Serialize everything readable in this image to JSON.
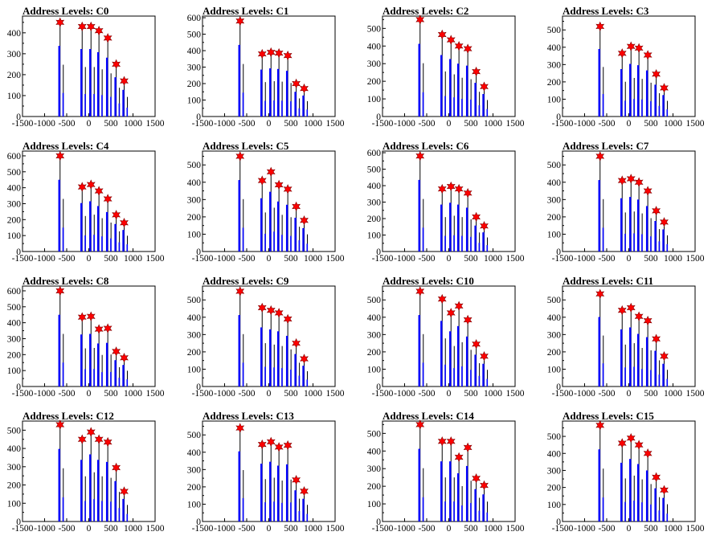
{
  "figure": {
    "colors": {
      "bar": "#0000ff",
      "marker": "#ff0000",
      "axis": "#000000"
    }
  },
  "chart_data": [
    {
      "type": "bar",
      "title": "Address Levels: C0",
      "xlim": [
        -1500,
        1500
      ],
      "ylim": [
        0,
        480
      ],
      "xticks": [
        "-1500",
        "-1000",
        "-500",
        "0",
        "500",
        "1000",
        "1500"
      ],
      "yticks": [
        "100",
        "200",
        "300",
        "400"
      ],
      "peaks": [
        [
          -650,
          450
        ],
        [
          -150,
          430
        ],
        [
          50,
          430
        ],
        [
          230,
          410
        ],
        [
          430,
          375
        ],
        [
          620,
          250
        ],
        [
          800,
          170
        ]
      ]
    },
    {
      "type": "bar",
      "title": "Address Levels: C1",
      "xlim": [
        -1500,
        1500
      ],
      "ylim": [
        0,
        610
      ],
      "xticks": [
        "-1500",
        "-1000",
        "-500",
        "0",
        "500",
        "1000",
        "1500"
      ],
      "yticks": [
        "100",
        "200",
        "300",
        "400",
        "500",
        "600"
      ],
      "peaks": [
        [
          -650,
          580
        ],
        [
          -150,
          380
        ],
        [
          50,
          390
        ],
        [
          230,
          385
        ],
        [
          430,
          370
        ],
        [
          620,
          200
        ],
        [
          800,
          170
        ]
      ]
    },
    {
      "type": "bar",
      "title": "Address Levels: C2",
      "xlim": [
        -1500,
        1500
      ],
      "ylim": [
        0,
        570
      ],
      "xticks": [
        "-1500",
        "-1000",
        "-500",
        "0",
        "500",
        "1000",
        "1500"
      ],
      "yticks": [
        "100",
        "200",
        "300",
        "400",
        "500"
      ],
      "peaks": [
        [
          -650,
          550
        ],
        [
          -150,
          465
        ],
        [
          50,
          435
        ],
        [
          230,
          400
        ],
        [
          430,
          385
        ],
        [
          620,
          255
        ],
        [
          800,
          170
        ]
      ]
    },
    {
      "type": "bar",
      "title": "Address Levels: C3",
      "xlim": [
        -1500,
        1500
      ],
      "ylim": [
        0,
        580
      ],
      "xticks": [
        "-1500",
        "-1000",
        "-500",
        "0",
        "500",
        "1000",
        "1500"
      ],
      "yticks": [
        "100",
        "200",
        "300",
        "400",
        "500"
      ],
      "peaks": [
        [
          -650,
          520
        ],
        [
          -150,
          365
        ],
        [
          50,
          405
        ],
        [
          230,
          395
        ],
        [
          430,
          355
        ],
        [
          620,
          245
        ],
        [
          800,
          165
        ]
      ]
    },
    {
      "type": "bar",
      "title": "Address Levels: C4",
      "xlim": [
        -1500,
        1500
      ],
      "ylim": [
        0,
        630
      ],
      "xticks": [
        "-1500",
        "-1000",
        "-500",
        "0",
        "500",
        "1000",
        "1500"
      ],
      "yticks": [
        "100",
        "200",
        "300",
        "400",
        "500",
        "600"
      ],
      "peaks": [
        [
          -650,
          600
        ],
        [
          -150,
          405
        ],
        [
          50,
          420
        ],
        [
          230,
          380
        ],
        [
          430,
          330
        ],
        [
          620,
          230
        ],
        [
          800,
          180
        ]
      ]
    },
    {
      "type": "bar",
      "title": "Address Levels: C5",
      "xlim": [
        -1500,
        1500
      ],
      "ylim": [
        0,
        580
      ],
      "xticks": [
        "-1500",
        "-1000",
        "-500",
        "0",
        "500",
        "1000",
        "1500"
      ],
      "yticks": [
        "100",
        "200",
        "300",
        "400",
        "500"
      ],
      "peaks": [
        [
          -650,
          550
        ],
        [
          -150,
          410
        ],
        [
          50,
          460
        ],
        [
          230,
          385
        ],
        [
          430,
          360
        ],
        [
          620,
          260
        ],
        [
          800,
          180
        ]
      ]
    },
    {
      "type": "bar",
      "title": "Address Levels: C6",
      "xlim": [
        -1500,
        1500
      ],
      "ylim": [
        0,
        610
      ],
      "xticks": [
        "-1500",
        "-1000",
        "-500",
        "0",
        "500",
        "1000",
        "1500"
      ],
      "yticks": [
        "100",
        "200",
        "300",
        "400",
        "500",
        "600"
      ],
      "peaks": [
        [
          -650,
          580
        ],
        [
          -150,
          380
        ],
        [
          50,
          395
        ],
        [
          230,
          380
        ],
        [
          430,
          355
        ],
        [
          620,
          210
        ],
        [
          800,
          155
        ]
      ]
    },
    {
      "type": "bar",
      "title": "Address Levels: C7",
      "xlim": [
        -1500,
        1500
      ],
      "ylim": [
        0,
        580
      ],
      "xticks": [
        "-1500",
        "-1000",
        "-500",
        "0",
        "500",
        "1000",
        "1500"
      ],
      "yticks": [
        "100",
        "200",
        "300",
        "400",
        "500"
      ],
      "peaks": [
        [
          -650,
          550
        ],
        [
          -150,
          410
        ],
        [
          50,
          420
        ],
        [
          230,
          400
        ],
        [
          430,
          350
        ],
        [
          620,
          235
        ],
        [
          800,
          170
        ]
      ]
    },
    {
      "type": "bar",
      "title": "Address Levels: C8",
      "xlim": [
        -1500,
        1500
      ],
      "ylim": [
        0,
        630
      ],
      "xticks": [
        "-1500",
        "-1000",
        "-500",
        "0",
        "500",
        "1000",
        "1500"
      ],
      "yticks": [
        "100",
        "200",
        "300",
        "400",
        "500",
        "600"
      ],
      "peaks": [
        [
          -650,
          600
        ],
        [
          -150,
          435
        ],
        [
          50,
          440
        ],
        [
          230,
          360
        ],
        [
          430,
          365
        ],
        [
          620,
          220
        ],
        [
          800,
          180
        ]
      ]
    },
    {
      "type": "bar",
      "title": "Address Levels: C9",
      "xlim": [
        -1500,
        1500
      ],
      "ylim": [
        0,
        580
      ],
      "xticks": [
        "-1500",
        "-1000",
        "-500",
        "0",
        "500",
        "1000",
        "1500"
      ],
      "yticks": [
        "100",
        "200",
        "300",
        "400",
        "500"
      ],
      "peaks": [
        [
          -650,
          550
        ],
        [
          -150,
          455
        ],
        [
          50,
          440
        ],
        [
          230,
          425
        ],
        [
          430,
          390
        ],
        [
          620,
          250
        ],
        [
          800,
          160
        ]
      ]
    },
    {
      "type": "bar",
      "title": "Address Levels: C10",
      "xlim": [
        -1500,
        1500
      ],
      "ylim": [
        0,
        580
      ],
      "xticks": [
        "-1500",
        "-1000",
        "-500",
        "0",
        "500",
        "1000",
        "1500"
      ],
      "yticks": [
        "100",
        "200",
        "300",
        "400",
        "500"
      ],
      "peaks": [
        [
          -650,
          550
        ],
        [
          -150,
          505
        ],
        [
          50,
          425
        ],
        [
          230,
          465
        ],
        [
          430,
          385
        ],
        [
          620,
          245
        ],
        [
          800,
          175
        ]
      ]
    },
    {
      "type": "bar",
      "title": "Address Levels: C11",
      "xlim": [
        -1500,
        1500
      ],
      "ylim": [
        0,
        580
      ],
      "xticks": [
        "-1500",
        "-1000",
        "-500",
        "0",
        "500",
        "1000",
        "1500"
      ],
      "yticks": [
        "100",
        "200",
        "300",
        "400",
        "500"
      ],
      "peaks": [
        [
          -650,
          535
        ],
        [
          -150,
          440
        ],
        [
          50,
          455
        ],
        [
          230,
          405
        ],
        [
          430,
          380
        ],
        [
          620,
          275
        ],
        [
          800,
          175
        ]
      ]
    },
    {
      "type": "bar",
      "title": "Address Levels: C12",
      "xlim": [
        -1500,
        1500
      ],
      "ylim": [
        0,
        550
      ],
      "xticks": [
        "-1500",
        "-1000",
        "-500",
        "0",
        "500",
        "1000",
        "1500"
      ],
      "yticks": [
        "100",
        "200",
        "300",
        "400",
        "500"
      ],
      "peaks": [
        [
          -650,
          530
        ],
        [
          -150,
          450
        ],
        [
          50,
          490
        ],
        [
          230,
          450
        ],
        [
          430,
          435
        ],
        [
          620,
          295
        ],
        [
          800,
          165
        ]
      ]
    },
    {
      "type": "bar",
      "title": "Address Levels: C13",
      "xlim": [
        -1500,
        1500
      ],
      "ylim": [
        0,
        580
      ],
      "xticks": [
        "-1500",
        "-1000",
        "-500",
        "0",
        "500",
        "1000",
        "1500"
      ],
      "yticks": [
        "100",
        "200",
        "300",
        "400",
        "500"
      ],
      "peaks": [
        [
          -650,
          540
        ],
        [
          -150,
          445
        ],
        [
          50,
          460
        ],
        [
          230,
          430
        ],
        [
          430,
          440
        ],
        [
          620,
          240
        ],
        [
          800,
          175
        ]
      ]
    },
    {
      "type": "bar",
      "title": "Address Levels: C14",
      "xlim": [
        -1500,
        1500
      ],
      "ylim": [
        0,
        570
      ],
      "xticks": [
        "-1500",
        "-1000",
        "-500",
        "0",
        "500",
        "1000",
        "1500"
      ],
      "yticks": [
        "100",
        "200",
        "300",
        "400",
        "500"
      ],
      "peaks": [
        [
          -650,
          550
        ],
        [
          -150,
          455
        ],
        [
          50,
          455
        ],
        [
          230,
          365
        ],
        [
          430,
          420
        ],
        [
          620,
          245
        ],
        [
          800,
          205
        ]
      ]
    },
    {
      "type": "bar",
      "title": "Address Levels: C15",
      "xlim": [
        -1500,
        1500
      ],
      "ylim": [
        0,
        590
      ],
      "xticks": [
        "-1500",
        "-1000",
        "-500",
        "0",
        "500",
        "1000",
        "1500"
      ],
      "yticks": [
        "100",
        "200",
        "300",
        "400",
        "500"
      ],
      "peaks": [
        [
          -650,
          565
        ],
        [
          -150,
          460
        ],
        [
          50,
          490
        ],
        [
          230,
          450
        ],
        [
          430,
          400
        ],
        [
          620,
          260
        ],
        [
          800,
          185
        ]
      ]
    }
  ]
}
